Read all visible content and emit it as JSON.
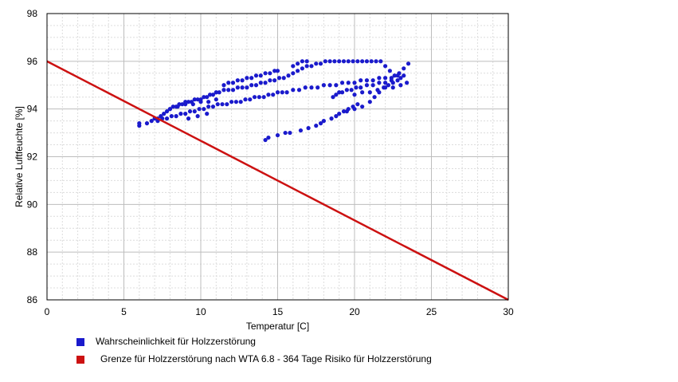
{
  "chart_data": {
    "type": "scatter",
    "xlabel": "Temperatur [C]",
    "ylabel": "Relative Luftfeuchte [%]",
    "xlim": [
      0,
      30
    ],
    "ylim": [
      86,
      98
    ],
    "xticks": [
      "0",
      "5",
      "10",
      "15",
      "20",
      "25",
      "30"
    ],
    "yticks": [
      "86",
      "88",
      "90",
      "92",
      "94",
      "96",
      "98"
    ],
    "grid": true,
    "legend_position": "bottom",
    "series": [
      {
        "name": "Wahrscheinlichkeit für Holzzerstörung",
        "type": "scatter",
        "color": "#1a1acc",
        "x": [
          6.0,
          6.0,
          6.5,
          6.8,
          7.0,
          7.2,
          7.4,
          7.6,
          7.8,
          8.0,
          8.2,
          8.4,
          8.6,
          8.8,
          9.0,
          9.2,
          9.4,
          9.6,
          9.8,
          10.0,
          10.2,
          10.4,
          10.6,
          10.8,
          11.0,
          11.2,
          11.5,
          11.8,
          12.1,
          12.4,
          12.7,
          13.0,
          13.3,
          13.6,
          13.9,
          14.2,
          14.5,
          14.8,
          15.1,
          15.4,
          15.7,
          16.0,
          16.3,
          16.6,
          16.9,
          17.2,
          17.5,
          17.8,
          18.1,
          18.4,
          18.7,
          19.0,
          19.3,
          19.6,
          19.9,
          20.2,
          20.5,
          20.8,
          21.1,
          21.4,
          21.7,
          22.0,
          22.3,
          22.6,
          22.9,
          23.2,
          23.5,
          7.2,
          7.5,
          7.8,
          8.1,
          8.4,
          8.7,
          9.0,
          9.3,
          9.6,
          9.9,
          10.2,
          10.5,
          10.8,
          11.1,
          11.4,
          11.7,
          12.0,
          12.3,
          12.6,
          12.9,
          13.2,
          13.5,
          13.8,
          14.1,
          14.4,
          14.7,
          15.0,
          15.3,
          15.6,
          16.0,
          16.4,
          16.8,
          17.2,
          17.6,
          18.0,
          18.4,
          18.8,
          19.2,
          19.6,
          20.0,
          20.4,
          20.8,
          21.2,
          21.6,
          22.0,
          22.4,
          22.8,
          23.2,
          11.5,
          11.8,
          12.1,
          12.4,
          12.7,
          13.0,
          13.3,
          13.6,
          13.9,
          14.2,
          14.5,
          14.8,
          15.0,
          16.0,
          16.3,
          16.6,
          16.9,
          14.2,
          14.4,
          15.0,
          15.5,
          15.8,
          16.5,
          17.0,
          17.5,
          17.8,
          18.0,
          18.5,
          18.8,
          19.0,
          19.3,
          19.6,
          19.9,
          20.2,
          18.6,
          18.8,
          19.0,
          19.2,
          19.5,
          19.8,
          20.1,
          20.4,
          20.8,
          21.2,
          21.6,
          22.0,
          22.4,
          22.8,
          23.0,
          20.0,
          20.5,
          21.0,
          21.5,
          22.0,
          22.5,
          23.0,
          23.4,
          8.0,
          8.5,
          9.0,
          9.5,
          10.0,
          10.5,
          11.0,
          9.2,
          9.8,
          10.4,
          19.5,
          20.0,
          20.5,
          21.0,
          21.3,
          21.6,
          21.9,
          22.2,
          22.5
        ],
        "y": [
          93.3,
          93.4,
          93.4,
          93.5,
          93.6,
          93.6,
          93.7,
          93.8,
          93.9,
          94.0,
          94.1,
          94.1,
          94.2,
          94.2,
          94.3,
          94.3,
          94.3,
          94.4,
          94.4,
          94.4,
          94.5,
          94.5,
          94.6,
          94.6,
          94.7,
          94.7,
          94.8,
          94.8,
          94.8,
          94.9,
          94.9,
          94.9,
          95.0,
          95.0,
          95.1,
          95.1,
          95.2,
          95.2,
          95.3,
          95.3,
          95.4,
          95.5,
          95.6,
          95.7,
          95.8,
          95.8,
          95.9,
          95.9,
          96.0,
          96.0,
          96.0,
          96.0,
          96.0,
          96.0,
          96.0,
          96.0,
          96.0,
          96.0,
          96.0,
          96.0,
          96.0,
          95.8,
          95.6,
          95.4,
          95.5,
          95.7,
          95.9,
          93.5,
          93.6,
          93.6,
          93.7,
          93.7,
          93.8,
          93.8,
          93.9,
          93.9,
          94.0,
          94.0,
          94.1,
          94.1,
          94.2,
          94.2,
          94.2,
          94.3,
          94.3,
          94.3,
          94.4,
          94.4,
          94.5,
          94.5,
          94.5,
          94.6,
          94.6,
          94.7,
          94.7,
          94.7,
          94.8,
          94.8,
          94.9,
          94.9,
          94.9,
          95.0,
          95.0,
          95.0,
          95.1,
          95.1,
          95.1,
          95.2,
          95.2,
          95.2,
          95.3,
          95.3,
          95.3,
          95.4,
          95.4,
          95.0,
          95.1,
          95.1,
          95.2,
          95.2,
          95.3,
          95.3,
          95.4,
          95.4,
          95.5,
          95.5,
          95.6,
          95.6,
          95.8,
          95.9,
          96.0,
          96.0,
          92.7,
          92.8,
          92.9,
          93.0,
          93.0,
          93.1,
          93.2,
          93.3,
          93.4,
          93.5,
          93.6,
          93.7,
          93.8,
          93.9,
          94.0,
          94.1,
          94.2,
          94.5,
          94.6,
          94.7,
          94.7,
          94.8,
          94.8,
          94.9,
          94.9,
          95.0,
          95.0,
          95.1,
          95.1,
          95.2,
          95.2,
          95.3,
          94.6,
          94.7,
          94.7,
          94.8,
          94.9,
          94.9,
          95.0,
          95.1,
          94.0,
          94.1,
          94.2,
          94.2,
          94.3,
          94.3,
          94.4,
          93.6,
          93.7,
          93.8,
          93.9,
          94.0,
          94.1,
          94.3,
          94.5,
          94.7,
          94.9,
          95.0,
          95.1
        ]
      },
      {
        "name": "Grenze für Holzzerstörung nach WTA 6.8 - 364 Tage Risiko für Holzzerstörung",
        "type": "line",
        "color": "#cc1111",
        "x": [
          0,
          30
        ],
        "y": [
          96,
          86
        ]
      }
    ]
  }
}
